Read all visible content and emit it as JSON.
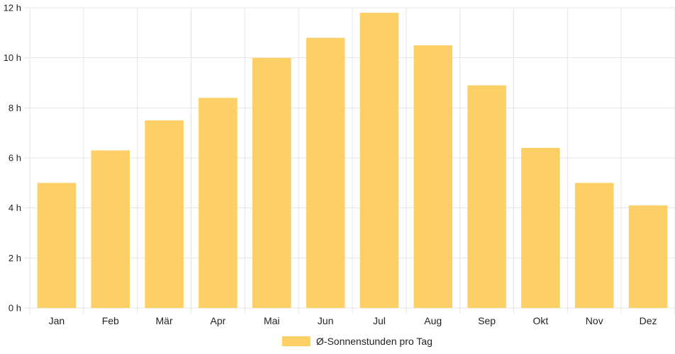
{
  "chart_data": {
    "type": "bar",
    "categories": [
      "Jan",
      "Feb",
      "Mär",
      "Apr",
      "Mai",
      "Jun",
      "Jul",
      "Aug",
      "Sep",
      "Okt",
      "Nov",
      "Dez"
    ],
    "series": [
      {
        "name": "Ø-Sonnenstunden pro Tag",
        "values": [
          5.0,
          6.3,
          7.5,
          8.4,
          10.0,
          10.8,
          11.8,
          10.5,
          8.9,
          6.4,
          5.0,
          4.1
        ],
        "color": "#fdd067"
      }
    ],
    "yticks": [
      "0 h",
      "2 h",
      "4 h",
      "6 h",
      "8 h",
      "10 h",
      "12 h"
    ],
    "ylim": [
      0,
      12
    ],
    "grid": true,
    "legend_position": "bottom-center",
    "gridline_color": "#e5e5e5"
  }
}
